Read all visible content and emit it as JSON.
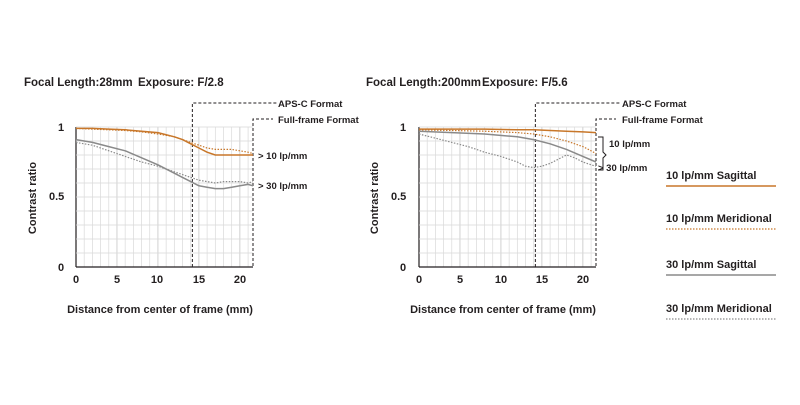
{
  "chart_data": [
    {
      "type": "line",
      "header": {
        "focal": "Focal Length:28mm",
        "exposure": "Exposure: F/2.8"
      },
      "xlabel": "Distance from center of frame (mm)",
      "ylabel": "Contrast ratio",
      "xlim": [
        0,
        21.6
      ],
      "ylim": [
        0,
        1
      ],
      "xticks": [
        "0",
        "5",
        "10",
        "15",
        "20"
      ],
      "yticks": [
        "0",
        "0.5",
        "1"
      ],
      "grid": true,
      "format_lines": [
        {
          "label": "APS-C Format",
          "x": 14.2
        },
        {
          "label": "Full-frame Format",
          "x": 21.6
        }
      ],
      "annotations": [
        "> 10 lp/mm",
        "> 30 lp/mm"
      ],
      "series": [
        {
          "name": "10 lp/mm Sagittal",
          "x": [
            0,
            2,
            4,
            6,
            8,
            10,
            12,
            13,
            14,
            15,
            16,
            17,
            18,
            19,
            20,
            21,
            21.6
          ],
          "values": [
            0.99,
            0.99,
            0.985,
            0.98,
            0.97,
            0.96,
            0.93,
            0.91,
            0.88,
            0.85,
            0.82,
            0.8,
            0.8,
            0.8,
            0.8,
            0.8,
            0.8
          ]
        },
        {
          "name": "10 lp/mm Meridional",
          "x": [
            0,
            2,
            4,
            6,
            8,
            10,
            12,
            13,
            14,
            15,
            16,
            17,
            18,
            19,
            20,
            21,
            21.6
          ],
          "values": [
            0.99,
            0.985,
            0.98,
            0.975,
            0.965,
            0.95,
            0.93,
            0.91,
            0.89,
            0.87,
            0.85,
            0.84,
            0.84,
            0.84,
            0.83,
            0.82,
            0.81
          ]
        },
        {
          "name": "30 lp/mm Sagittal",
          "x": [
            0,
            2,
            4,
            6,
            8,
            10,
            12,
            13,
            14,
            15,
            16,
            17,
            18,
            19,
            20,
            21,
            21.6
          ],
          "values": [
            0.91,
            0.89,
            0.86,
            0.83,
            0.78,
            0.73,
            0.67,
            0.64,
            0.61,
            0.58,
            0.57,
            0.56,
            0.56,
            0.57,
            0.58,
            0.59,
            0.58
          ]
        },
        {
          "name": "30 lp/mm Meridional",
          "x": [
            0,
            2,
            4,
            6,
            8,
            10,
            12,
            13,
            14,
            15,
            16,
            17,
            18,
            19,
            20,
            21,
            21.6
          ],
          "values": [
            0.89,
            0.87,
            0.83,
            0.79,
            0.75,
            0.72,
            0.68,
            0.66,
            0.64,
            0.62,
            0.61,
            0.6,
            0.61,
            0.61,
            0.61,
            0.6,
            0.61
          ]
        }
      ]
    },
    {
      "type": "line",
      "header": {
        "focal": "Focal Length:200mm",
        "exposure": "Exposure: F/5.6"
      },
      "xlabel": "Distance from center of frame (mm)",
      "ylabel": "Contrast ratio",
      "xlim": [
        0,
        21.6
      ],
      "ylim": [
        0,
        1
      ],
      "xticks": [
        "0",
        "5",
        "10",
        "15",
        "20"
      ],
      "yticks": [
        "0",
        "0.5",
        "1"
      ],
      "grid": true,
      "format_lines": [
        {
          "label": "APS-C Format",
          "x": 14.2
        },
        {
          "label": "Full-frame Format",
          "x": 21.6
        }
      ],
      "annotations": [
        "10 lp/mm",
        "> 30 lp/mm"
      ],
      "series": [
        {
          "name": "10 lp/mm Sagittal",
          "x": [
            0,
            4,
            8,
            12,
            14,
            16,
            18,
            20,
            21.6
          ],
          "values": [
            0.985,
            0.985,
            0.985,
            0.98,
            0.98,
            0.975,
            0.97,
            0.965,
            0.96
          ]
        },
        {
          "name": "10 lp/mm Meridional",
          "x": [
            0,
            4,
            8,
            12,
            14,
            16,
            18,
            19,
            20,
            21,
            21.6
          ],
          "values": [
            0.98,
            0.975,
            0.97,
            0.96,
            0.95,
            0.93,
            0.9,
            0.88,
            0.86,
            0.83,
            0.81
          ]
        },
        {
          "name": "30 lp/mm Sagittal",
          "x": [
            0,
            4,
            8,
            12,
            14,
            16,
            18,
            20,
            21.6
          ],
          "values": [
            0.97,
            0.96,
            0.95,
            0.93,
            0.91,
            0.88,
            0.84,
            0.79,
            0.75
          ]
        },
        {
          "name": "30 lp/mm Meridional",
          "x": [
            0,
            2,
            4,
            6,
            8,
            10,
            12,
            13,
            14,
            15,
            16,
            17,
            18,
            19,
            20,
            21,
            21.6
          ],
          "values": [
            0.95,
            0.92,
            0.89,
            0.86,
            0.82,
            0.79,
            0.75,
            0.72,
            0.71,
            0.72,
            0.74,
            0.77,
            0.8,
            0.78,
            0.75,
            0.73,
            0.72
          ]
        }
      ]
    }
  ],
  "legend": {
    "items": [
      {
        "label": "10 lp/mm Sagittal",
        "color": "#c8772a",
        "style": "solid"
      },
      {
        "label": "10 lp/mm Meridional",
        "color": "#c8772a",
        "style": "dotted"
      },
      {
        "label": "30 lp/mm Sagittal",
        "color": "#8a8a8a",
        "style": "solid"
      },
      {
        "label": "30 lp/mm Meridional",
        "color": "#8a8a8a",
        "style": "dotted"
      }
    ]
  }
}
